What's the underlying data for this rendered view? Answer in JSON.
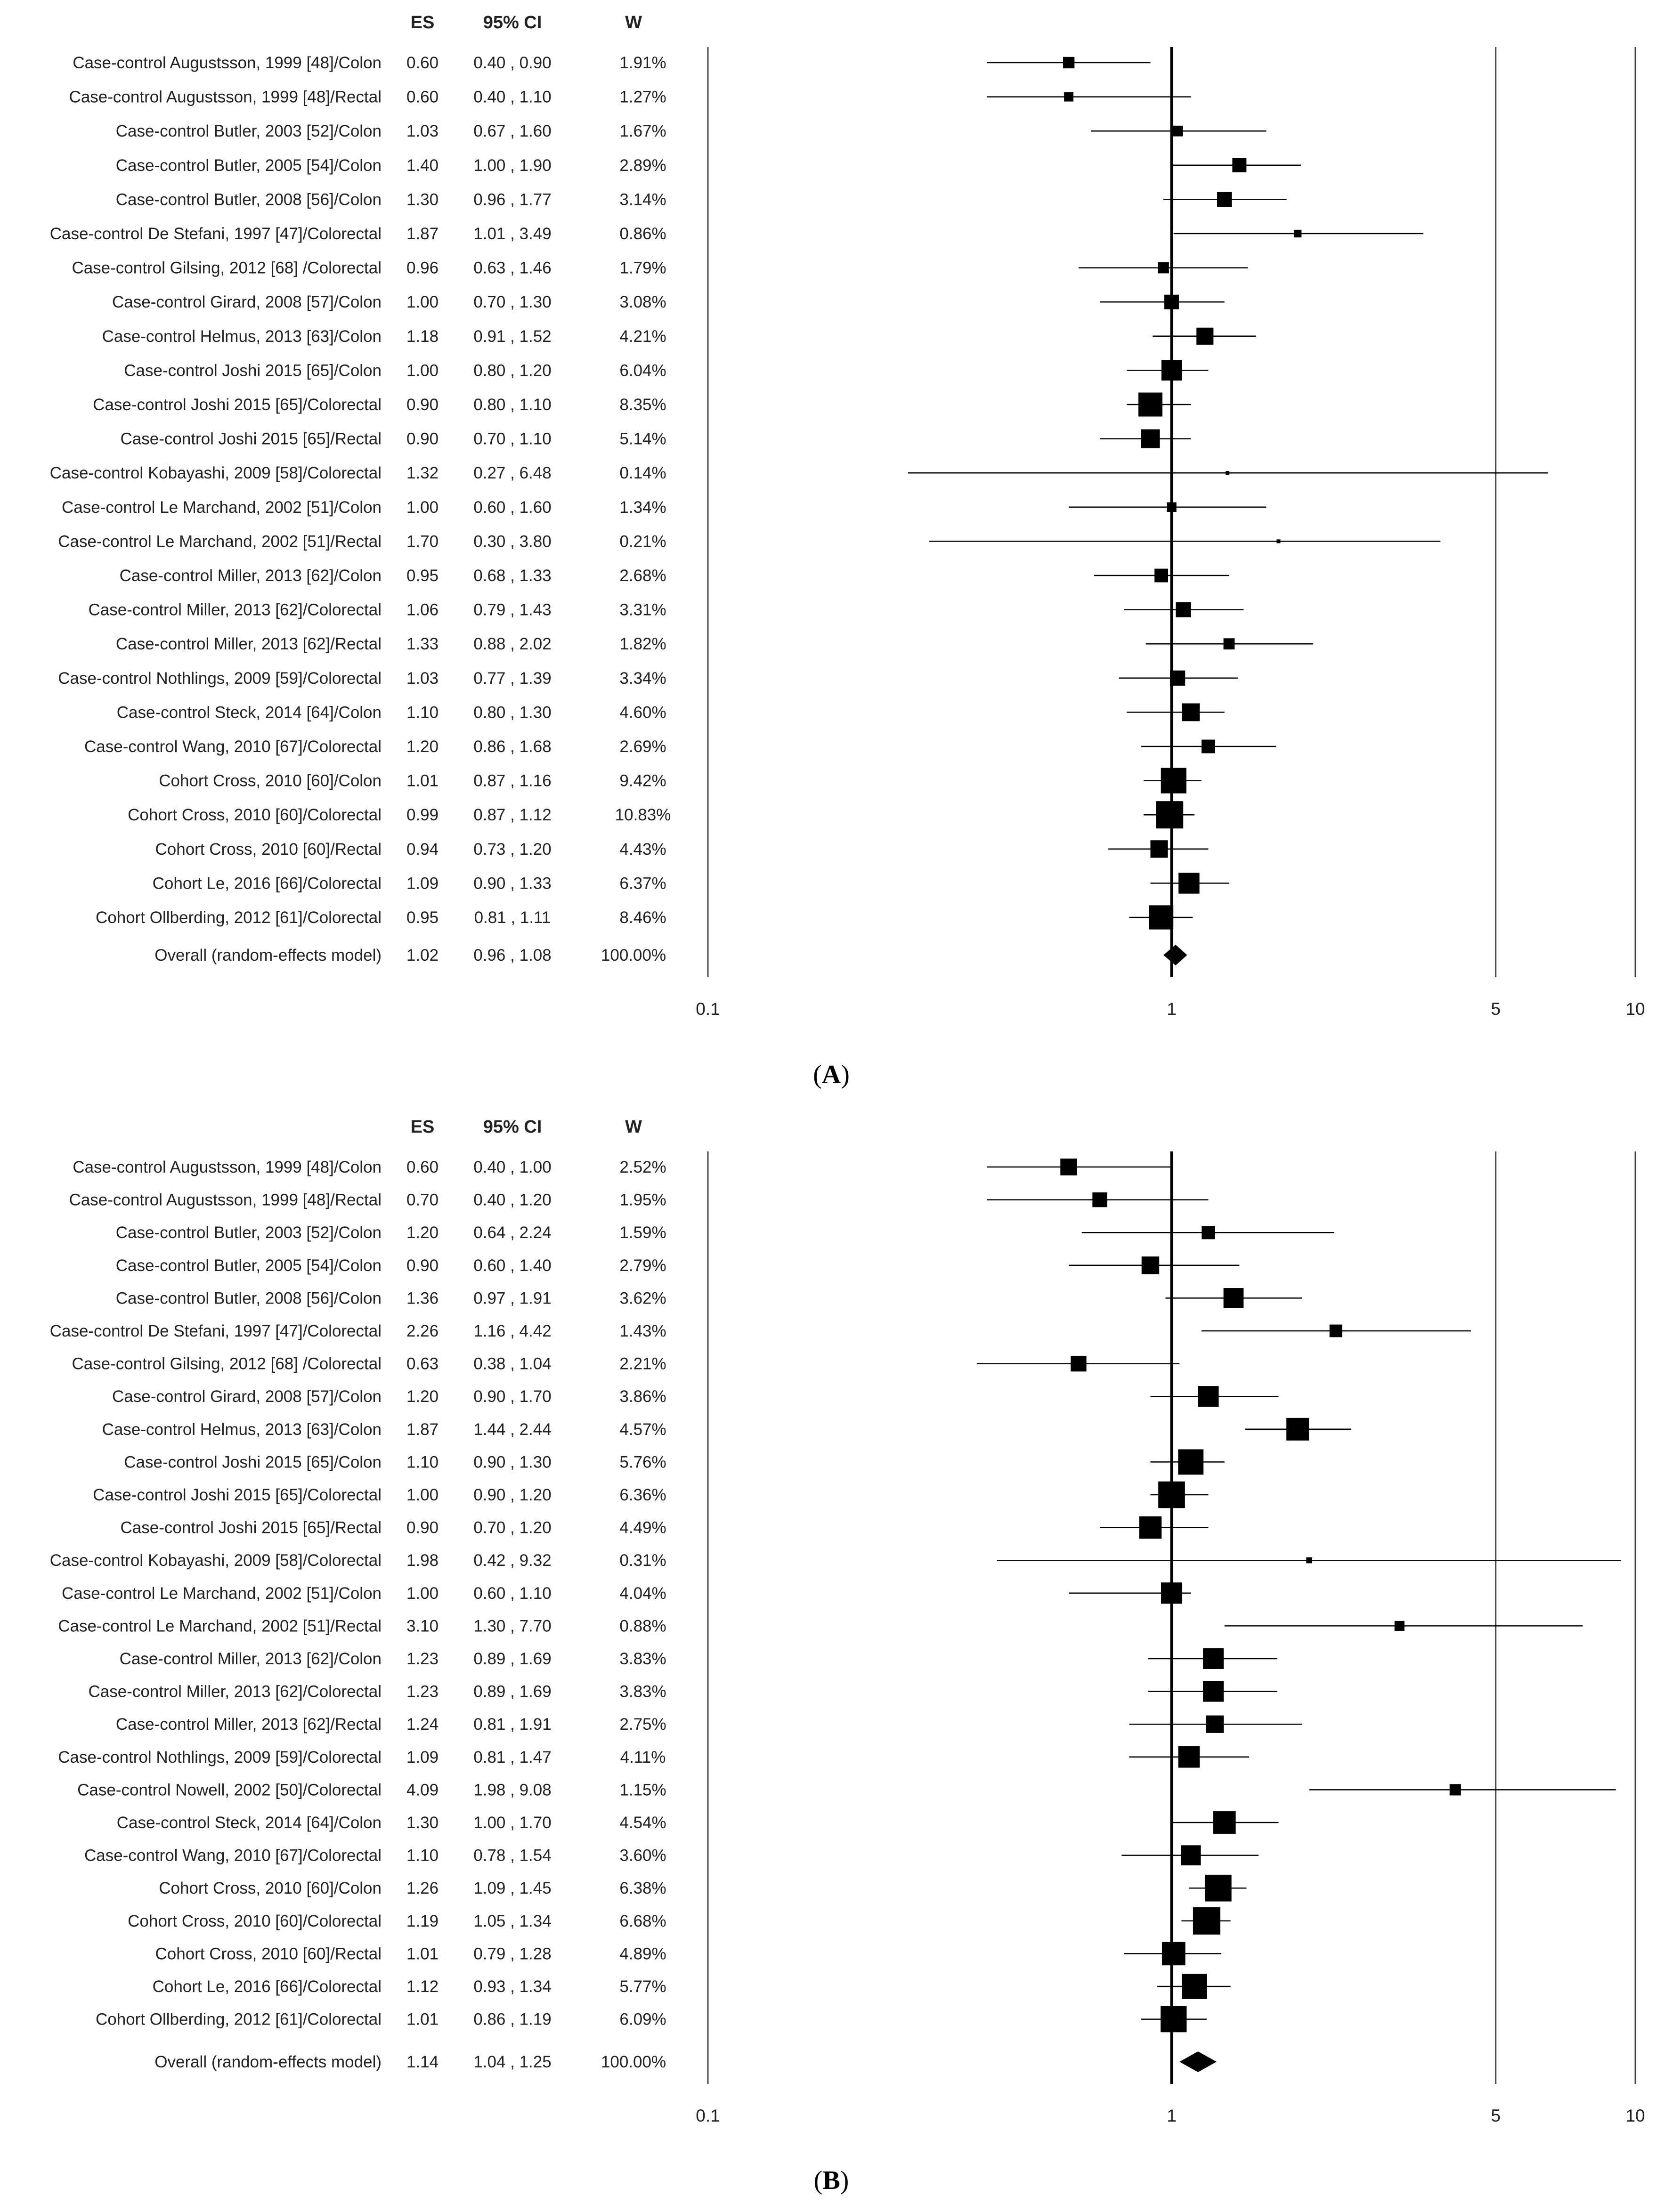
{
  "chart_data": [
    {
      "type": "forest",
      "panel_label": "(A)",
      "panel_letter": "A",
      "headers": {
        "es": "ES",
        "ci": "95% CI",
        "w": "W"
      },
      "x_scale": "log",
      "xlim": [
        0.1,
        10
      ],
      "x_ticks": [
        0.1,
        1,
        5,
        10
      ],
      "tick_labels": [
        "0.1",
        "1",
        "5",
        "10"
      ],
      "reference_line": 1,
      "studies": [
        {
          "label": "Case-control Augustsson, 1999 [48]/Colon",
          "es": 0.6,
          "lo": 0.4,
          "hi": 0.9,
          "w": 1.91,
          "es_text": "0.60",
          "ci_text": "0.40 , 0.90",
          "w_text": "1.91%"
        },
        {
          "label": "Case-control Augustsson, 1999 [48]/Rectal",
          "es": 0.6,
          "lo": 0.4,
          "hi": 1.1,
          "w": 1.27,
          "es_text": "0.60",
          "ci_text": "0.40 , 1.10",
          "w_text": "1.27%"
        },
        {
          "label": "Case-control Butler, 2003 [52]/Colon",
          "es": 1.03,
          "lo": 0.67,
          "hi": 1.6,
          "w": 1.67,
          "es_text": "1.03",
          "ci_text": "0.67 , 1.60",
          "w_text": "1.67%"
        },
        {
          "label": "Case-control Butler, 2005 [54]/Colon",
          "es": 1.4,
          "lo": 1.0,
          "hi": 1.9,
          "w": 2.89,
          "es_text": "1.40",
          "ci_text": "1.00 , 1.90",
          "w_text": "2.89%"
        },
        {
          "label": "Case-control Butler, 2008 [56]/Colon",
          "es": 1.3,
          "lo": 0.96,
          "hi": 1.77,
          "w": 3.14,
          "es_text": "1.30",
          "ci_text": "0.96 , 1.77",
          "w_text": "3.14%"
        },
        {
          "label": "Case-control De Stefani, 1997 [47]/Colorectal",
          "es": 1.87,
          "lo": 1.01,
          "hi": 3.49,
          "w": 0.86,
          "es_text": "1.87",
          "ci_text": "1.01 , 3.49",
          "w_text": "0.86%"
        },
        {
          "label": "Case-control Gilsing, 2012 [68] /Colorectal",
          "es": 0.96,
          "lo": 0.63,
          "hi": 1.46,
          "w": 1.79,
          "es_text": "0.96",
          "ci_text": "0.63 , 1.46",
          "w_text": "1.79%"
        },
        {
          "label": "Case-control Girard, 2008 [57]/Colon",
          "es": 1.0,
          "lo": 0.7,
          "hi": 1.3,
          "w": 3.08,
          "es_text": "1.00",
          "ci_text": "0.70 , 1.30",
          "w_text": "3.08%"
        },
        {
          "label": "Case-control Helmus, 2013 [63]/Colon",
          "es": 1.18,
          "lo": 0.91,
          "hi": 1.52,
          "w": 4.21,
          "es_text": "1.18",
          "ci_text": "0.91 , 1.52",
          "w_text": "4.21%"
        },
        {
          "label": "Case-control Joshi 2015 [65]/Colon",
          "es": 1.0,
          "lo": 0.8,
          "hi": 1.2,
          "w": 6.04,
          "es_text": "1.00",
          "ci_text": "0.80 , 1.20",
          "w_text": "6.04%"
        },
        {
          "label": "Case-control Joshi 2015 [65]/Colorectal",
          "es": 0.9,
          "lo": 0.8,
          "hi": 1.1,
          "w": 8.35,
          "es_text": "0.90",
          "ci_text": "0.80 , 1.10",
          "w_text": "8.35%"
        },
        {
          "label": "Case-control Joshi 2015 [65]/Rectal",
          "es": 0.9,
          "lo": 0.7,
          "hi": 1.1,
          "w": 5.14,
          "es_text": "0.90",
          "ci_text": "0.70 , 1.10",
          "w_text": "5.14%"
        },
        {
          "label": "Case-control Kobayashi, 2009 [58]/Colorectal",
          "es": 1.32,
          "lo": 0.27,
          "hi": 6.48,
          "w": 0.14,
          "es_text": "1.32",
          "ci_text": "0.27 , 6.48",
          "w_text": "0.14%"
        },
        {
          "label": "Case-control Le Marchand, 2002 [51]/Colon",
          "es": 1.0,
          "lo": 0.6,
          "hi": 1.6,
          "w": 1.34,
          "es_text": "1.00",
          "ci_text": "0.60 , 1.60",
          "w_text": "1.34%"
        },
        {
          "label": "Case-control Le Marchand, 2002 [51]/Rectal",
          "es": 1.7,
          "lo": 0.3,
          "hi": 3.8,
          "w": 0.21,
          "es_text": "1.70",
          "ci_text": "0.30 , 3.80",
          "w_text": "0.21%"
        },
        {
          "label": "Case-control Miller, 2013 [62]/Colon",
          "es": 0.95,
          "lo": 0.68,
          "hi": 1.33,
          "w": 2.68,
          "es_text": "0.95",
          "ci_text": "0.68 , 1.33",
          "w_text": "2.68%"
        },
        {
          "label": "Case-control Miller, 2013 [62]/Colorectal",
          "es": 1.06,
          "lo": 0.79,
          "hi": 1.43,
          "w": 3.31,
          "es_text": "1.06",
          "ci_text": "0.79 , 1.43",
          "w_text": "3.31%"
        },
        {
          "label": "Case-control Miller, 2013 [62]/Rectal",
          "es": 1.33,
          "lo": 0.88,
          "hi": 2.02,
          "w": 1.82,
          "es_text": "1.33",
          "ci_text": "0.88 , 2.02",
          "w_text": "1.82%"
        },
        {
          "label": "Case-control Nothlings, 2009 [59]/Colorectal",
          "es": 1.03,
          "lo": 0.77,
          "hi": 1.39,
          "w": 3.34,
          "es_text": "1.03",
          "ci_text": "0.77 , 1.39",
          "w_text": "3.34%"
        },
        {
          "label": "Case-control Steck, 2014 [64]/Colon",
          "es": 1.1,
          "lo": 0.8,
          "hi": 1.3,
          "w": 4.6,
          "es_text": "1.10",
          "ci_text": "0.80 , 1.30",
          "w_text": "4.60%"
        },
        {
          "label": "Case-control Wang, 2010 [67]/Colorectal",
          "es": 1.2,
          "lo": 0.86,
          "hi": 1.68,
          "w": 2.69,
          "es_text": "1.20",
          "ci_text": "0.86 , 1.68",
          "w_text": "2.69%"
        },
        {
          "label": "Cohort Cross, 2010 [60]/Colon",
          "es": 1.01,
          "lo": 0.87,
          "hi": 1.16,
          "w": 9.42,
          "es_text": "1.01",
          "ci_text": "0.87 , 1.16",
          "w_text": "9.42%"
        },
        {
          "label": "Cohort Cross, 2010 [60]/Colorectal",
          "es": 0.99,
          "lo": 0.87,
          "hi": 1.12,
          "w": 10.83,
          "es_text": "0.99",
          "ci_text": "0.87 , 1.12",
          "w_text": "10.83%"
        },
        {
          "label": "Cohort Cross, 2010 [60]/Rectal",
          "es": 0.94,
          "lo": 0.73,
          "hi": 1.2,
          "w": 4.43,
          "es_text": "0.94",
          "ci_text": "0.73 , 1.20",
          "w_text": "4.43%"
        },
        {
          "label": "Cohort Le, 2016 [66]/Colorectal",
          "es": 1.09,
          "lo": 0.9,
          "hi": 1.33,
          "w": 6.37,
          "es_text": "1.09",
          "ci_text": "0.90 , 1.33",
          "w_text": "6.37%"
        },
        {
          "label": "Cohort Ollberding, 2012 [61]/Colorectal",
          "es": 0.95,
          "lo": 0.81,
          "hi": 1.11,
          "w": 8.46,
          "es_text": "0.95",
          "ci_text": "0.81 , 1.11",
          "w_text": "8.46%"
        }
      ],
      "overall": {
        "label": "Overall (random-effects model)",
        "es": 1.02,
        "lo": 0.96,
        "hi": 1.08,
        "es_text": "1.02",
        "ci_text": "0.96 , 1.08",
        "w_text": "100.00%"
      }
    },
    {
      "type": "forest",
      "panel_label": "(B)",
      "panel_letter": "B",
      "headers": {
        "es": "ES",
        "ci": "95% CI",
        "w": "W"
      },
      "x_scale": "log",
      "xlim": [
        0.1,
        10
      ],
      "x_ticks": [
        0.1,
        1,
        5,
        10
      ],
      "tick_labels": [
        "0.1",
        "1",
        "5",
        "10"
      ],
      "reference_line": 1,
      "studies": [
        {
          "label": "Case-control Augustsson, 1999 [48]/Colon",
          "es": 0.6,
          "lo": 0.4,
          "hi": 1.0,
          "w": 2.52,
          "es_text": "0.60",
          "ci_text": "0.40 , 1.00",
          "w_text": "2.52%"
        },
        {
          "label": "Case-control Augustsson, 1999 [48]/Rectal",
          "es": 0.7,
          "lo": 0.4,
          "hi": 1.2,
          "w": 1.95,
          "es_text": "0.70",
          "ci_text": "0.40 , 1.20",
          "w_text": "1.95%"
        },
        {
          "label": "Case-control Butler, 2003 [52]/Colon",
          "es": 1.2,
          "lo": 0.64,
          "hi": 2.24,
          "w": 1.59,
          "es_text": "1.20",
          "ci_text": "0.64 , 2.24",
          "w_text": "1.59%"
        },
        {
          "label": "Case-control Butler, 2005 [54]/Colon",
          "es": 0.9,
          "lo": 0.6,
          "hi": 1.4,
          "w": 2.79,
          "es_text": "0.90",
          "ci_text": "0.60 , 1.40",
          "w_text": "2.79%"
        },
        {
          "label": "Case-control Butler, 2008 [56]/Colon",
          "es": 1.36,
          "lo": 0.97,
          "hi": 1.91,
          "w": 3.62,
          "es_text": "1.36",
          "ci_text": "0.97 , 1.91",
          "w_text": "3.62%"
        },
        {
          "label": "Case-control De Stefani, 1997 [47]/Colorectal",
          "es": 2.26,
          "lo": 1.16,
          "hi": 4.42,
          "w": 1.43,
          "es_text": "2.26",
          "ci_text": "1.16 , 4.42",
          "w_text": "1.43%"
        },
        {
          "label": "Case-control Gilsing, 2012 [68] /Colorectal",
          "es": 0.63,
          "lo": 0.38,
          "hi": 1.04,
          "w": 2.21,
          "es_text": "0.63",
          "ci_text": "0.38 , 1.04",
          "w_text": "2.21%"
        },
        {
          "label": "Case-control Girard, 2008 [57]/Colon",
          "es": 1.2,
          "lo": 0.9,
          "hi": 1.7,
          "w": 3.86,
          "es_text": "1.20",
          "ci_text": "0.90 , 1.70",
          "w_text": "3.86%"
        },
        {
          "label": "Case-control Helmus, 2013 [63]/Colon",
          "es": 1.87,
          "lo": 1.44,
          "hi": 2.44,
          "w": 4.57,
          "es_text": "1.87",
          "ci_text": "1.44 , 2.44",
          "w_text": "4.57%"
        },
        {
          "label": "Case-control Joshi 2015 [65]/Colon",
          "es": 1.1,
          "lo": 0.9,
          "hi": 1.3,
          "w": 5.76,
          "es_text": "1.10",
          "ci_text": "0.90 , 1.30",
          "w_text": "5.76%"
        },
        {
          "label": "Case-control Joshi 2015 [65]/Colorectal",
          "es": 1.0,
          "lo": 0.9,
          "hi": 1.2,
          "w": 6.36,
          "es_text": "1.00",
          "ci_text": "0.90 , 1.20",
          "w_text": "6.36%"
        },
        {
          "label": "Case-control Joshi 2015 [65]/Rectal",
          "es": 0.9,
          "lo": 0.7,
          "hi": 1.2,
          "w": 4.49,
          "es_text": "0.90",
          "ci_text": "0.70 , 1.20",
          "w_text": "4.49%"
        },
        {
          "label": "Case-control Kobayashi, 2009 [58]/Colorectal",
          "es": 1.98,
          "lo": 0.42,
          "hi": 9.32,
          "w": 0.31,
          "es_text": "1.98",
          "ci_text": "0.42 , 9.32",
          "w_text": "0.31%"
        },
        {
          "label": "Case-control Le Marchand, 2002 [51]/Colon",
          "es": 1.0,
          "lo": 0.6,
          "hi": 1.1,
          "w": 4.04,
          "es_text": "1.00",
          "ci_text": "0.60 , 1.10",
          "w_text": "4.04%"
        },
        {
          "label": "Case-control Le Marchand, 2002 [51]/Rectal",
          "es": 3.1,
          "lo": 1.3,
          "hi": 7.7,
          "w": 0.88,
          "es_text": "3.10",
          "ci_text": "1.30 , 7.70",
          "w_text": "0.88%"
        },
        {
          "label": "Case-control Miller, 2013 [62]/Colon",
          "es": 1.23,
          "lo": 0.89,
          "hi": 1.69,
          "w": 3.83,
          "es_text": "1.23",
          "ci_text": "0.89 , 1.69",
          "w_text": "3.83%"
        },
        {
          "label": "Case-control Miller, 2013 [62]/Colorectal",
          "es": 1.23,
          "lo": 0.89,
          "hi": 1.69,
          "w": 3.83,
          "es_text": "1.23",
          "ci_text": "0.89 , 1.69",
          "w_text": "3.83%"
        },
        {
          "label": "Case-control Miller, 2013 [62]/Rectal",
          "es": 1.24,
          "lo": 0.81,
          "hi": 1.91,
          "w": 2.75,
          "es_text": "1.24",
          "ci_text": "0.81 , 1.91",
          "w_text": "2.75%"
        },
        {
          "label": "Case-control Nothlings, 2009 [59]/Colorectal",
          "es": 1.09,
          "lo": 0.81,
          "hi": 1.47,
          "w": 4.11,
          "es_text": "1.09",
          "ci_text": "0.81 , 1.47",
          "w_text": "4.11%"
        },
        {
          "label": "Case-control Nowell, 2002 [50]/Colorectal",
          "es": 4.09,
          "lo": 1.98,
          "hi": 9.08,
          "w": 1.15,
          "es_text": "4.09",
          "ci_text": "1.98 , 9.08",
          "w_text": "1.15%"
        },
        {
          "label": "Case-control Steck, 2014 [64]/Colon",
          "es": 1.3,
          "lo": 1.0,
          "hi": 1.7,
          "w": 4.54,
          "es_text": "1.30",
          "ci_text": "1.00 , 1.70",
          "w_text": "4.54%"
        },
        {
          "label": "Case-control Wang, 2010 [67]/Colorectal",
          "es": 1.1,
          "lo": 0.78,
          "hi": 1.54,
          "w": 3.6,
          "es_text": "1.10",
          "ci_text": "0.78 , 1.54",
          "w_text": "3.60%"
        },
        {
          "label": "Cohort Cross, 2010 [60]/Colon",
          "es": 1.26,
          "lo": 1.09,
          "hi": 1.45,
          "w": 6.38,
          "es_text": "1.26",
          "ci_text": "1.09 , 1.45",
          "w_text": "6.38%"
        },
        {
          "label": "Cohort Cross, 2010 [60]/Colorectal",
          "es": 1.19,
          "lo": 1.05,
          "hi": 1.34,
          "w": 6.68,
          "es_text": "1.19",
          "ci_text": "1.05 , 1.34",
          "w_text": "6.68%"
        },
        {
          "label": "Cohort Cross, 2010 [60]/Rectal",
          "es": 1.01,
          "lo": 0.79,
          "hi": 1.28,
          "w": 4.89,
          "es_text": "1.01",
          "ci_text": "0.79 , 1.28",
          "w_text": "4.89%"
        },
        {
          "label": "Cohort Le, 2016 [66]/Colorectal",
          "es": 1.12,
          "lo": 0.93,
          "hi": 1.34,
          "w": 5.77,
          "es_text": "1.12",
          "ci_text": "0.93 , 1.34",
          "w_text": "5.77%"
        },
        {
          "label": "Cohort Ollberding, 2012 [61]/Colorectal",
          "es": 1.01,
          "lo": 0.86,
          "hi": 1.19,
          "w": 6.09,
          "es_text": "1.01",
          "ci_text": "0.86 , 1.19",
          "w_text": "6.09%"
        }
      ],
      "overall": {
        "label": "Overall (random-effects model)",
        "es": 1.14,
        "lo": 1.04,
        "hi": 1.25,
        "es_text": "1.14",
        "ci_text": "1.04 , 1.25",
        "w_text": "100.00%"
      }
    }
  ]
}
